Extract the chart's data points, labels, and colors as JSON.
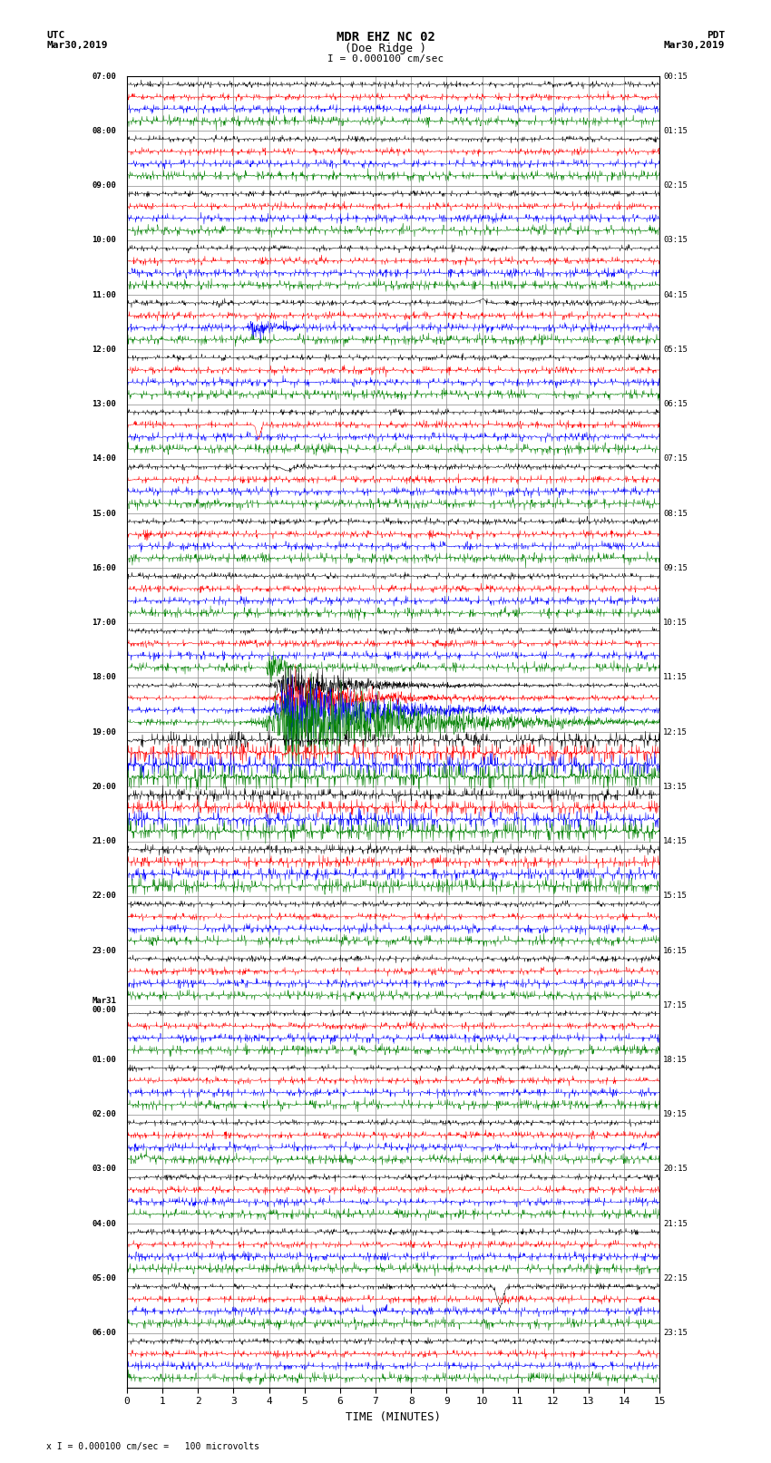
{
  "title_line1": "MDR EHZ NC 02",
  "title_line2": "(Doe Ridge )",
  "scale_label": "I = 0.000100 cm/sec",
  "utc_label": "UTC\nMar30,2019",
  "pdt_label": "PDT\nMar30,2019",
  "xlabel": "TIME (MINUTES)",
  "footer": "x I = 0.000100 cm/sec =   100 microvolts",
  "left_times": [
    "07:00",
    "08:00",
    "09:00",
    "10:00",
    "11:00",
    "12:00",
    "13:00",
    "14:00",
    "15:00",
    "16:00",
    "17:00",
    "18:00",
    "19:00",
    "20:00",
    "21:00",
    "22:00",
    "23:00",
    "Mar31\n00:00",
    "01:00",
    "02:00",
    "03:00",
    "04:00",
    "05:00",
    "06:00"
  ],
  "right_times": [
    "00:15",
    "01:15",
    "02:15",
    "03:15",
    "04:15",
    "05:15",
    "06:15",
    "07:15",
    "08:15",
    "09:15",
    "10:15",
    "11:15",
    "12:15",
    "13:15",
    "14:15",
    "15:15",
    "16:15",
    "17:15",
    "18:15",
    "19:15",
    "20:15",
    "21:15",
    "22:15",
    "23:15"
  ],
  "n_rows": 24,
  "xmin": 0,
  "xmax": 15,
  "colors": [
    "black",
    "red",
    "blue",
    "green"
  ],
  "bg_color": "white",
  "grid_color": "#888888",
  "n_traces_per_row": 4
}
